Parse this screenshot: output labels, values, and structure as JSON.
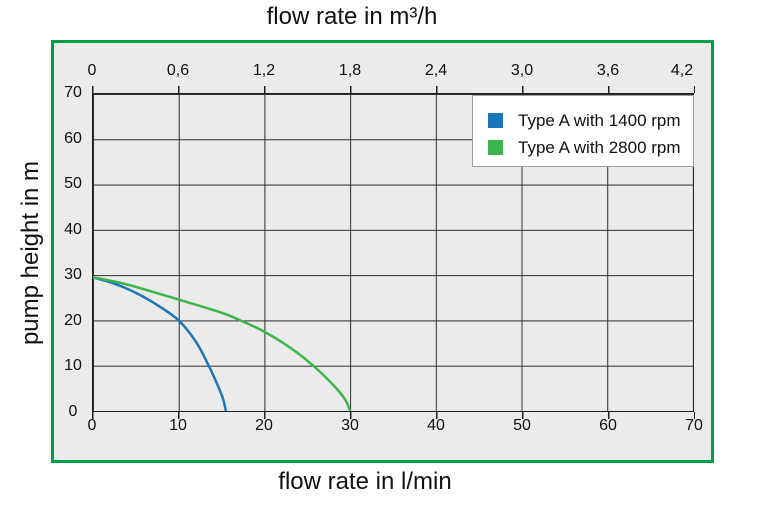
{
  "figure": {
    "top_axis_title": "flow rate in m³/h",
    "bottom_axis_title": "flow rate in l/min",
    "y_axis_title": "pump height in m"
  },
  "colors": {
    "frame_green": "#009E49",
    "panel_background": "#ebebeb",
    "grid_line": "#2d2d2d",
    "plot_border": "#1f1f1f",
    "legend_border": "#9e9e9e",
    "series_1400_blue": "#1b75bb",
    "series_2800_green": "#3cb54a"
  },
  "axes": {
    "top": {
      "unit": "m³/h",
      "ticks": [
        "0",
        "0,6",
        "1,2",
        "1,8",
        "2,4",
        "3,0",
        "3,6",
        "4,2"
      ]
    },
    "bottom": {
      "unit": "l/min",
      "ticks": [
        "0",
        "10",
        "20",
        "30",
        "40",
        "50",
        "60",
        "70"
      ]
    },
    "left": {
      "unit": "m",
      "ticks": [
        "70",
        "60",
        "50",
        "40",
        "30",
        "20",
        "10",
        "0"
      ]
    }
  },
  "chart_data": {
    "type": "line",
    "top_xlabel": "flow rate in m³/h",
    "xlabel": "flow rate in l/min",
    "ylabel": "pump height in m",
    "xlim": [
      0,
      70
    ],
    "ylim": [
      0,
      70
    ],
    "x_tick_step": 10,
    "y_tick_step": 10,
    "top_axis_note": "top axis shows same flow in m³/h (0 to 4,2 in steps of 0,6; 0,6 m³/h = 10 l/min)",
    "grid": true,
    "legend_position": "top-right",
    "series": [
      {
        "name": "Type A with 1400 rpm",
        "color": "#1b75bb",
        "points": [
          [
            0,
            29.5
          ],
          [
            2.5,
            28.1
          ],
          [
            5,
            26.1
          ],
          [
            7.5,
            23.4
          ],
          [
            10,
            20
          ],
          [
            12,
            15.3
          ],
          [
            13.5,
            10
          ],
          [
            14.7,
            5
          ],
          [
            15.2,
            2.5
          ],
          [
            15.5,
            0
          ]
        ]
      },
      {
        "name": "Type A with 2800 rpm",
        "color": "#3cb54a",
        "points": [
          [
            0,
            29.5
          ],
          [
            2.5,
            28.6
          ],
          [
            5,
            27.4
          ],
          [
            10,
            24.6
          ],
          [
            15,
            21.7
          ],
          [
            17.2,
            20
          ],
          [
            20,
            17.5
          ],
          [
            23,
            14
          ],
          [
            25.7,
            10
          ],
          [
            28,
            5.8
          ],
          [
            29.4,
            2.6
          ],
          [
            30,
            0
          ]
        ]
      }
    ]
  }
}
